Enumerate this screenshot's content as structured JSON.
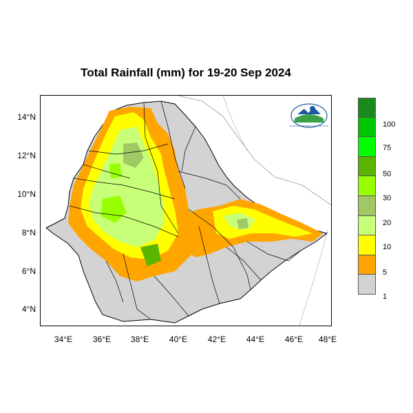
{
  "title": "Total Rainfall (mm) for 19-20 Sep 2024",
  "map": {
    "lat_ticks": [
      "14°N",
      "12°N",
      "10°N",
      "8°N",
      "6°N",
      "4°N"
    ],
    "lon_ticks": [
      "34°E",
      "36°E",
      "38°E",
      "40°E",
      "42°E",
      "44°E",
      "46°E",
      "48°E"
    ],
    "lat_range": [
      3.2,
      15.2
    ],
    "lon_range": [
      33.0,
      48.2
    ],
    "logo_text": "ETHIOPIAN METEOROLOGY INSTITUTE"
  },
  "legend": {
    "colors": [
      "#1a8a1a",
      "#00c800",
      "#00ff00",
      "#5ab400",
      "#96ff00",
      "#a0c864",
      "#c8ff78",
      "#ffff00",
      "#ffa500",
      "#d3d3d3"
    ],
    "labels": [
      "100",
      "75",
      "50",
      "30",
      "20",
      "10",
      "5",
      "1"
    ]
  }
}
